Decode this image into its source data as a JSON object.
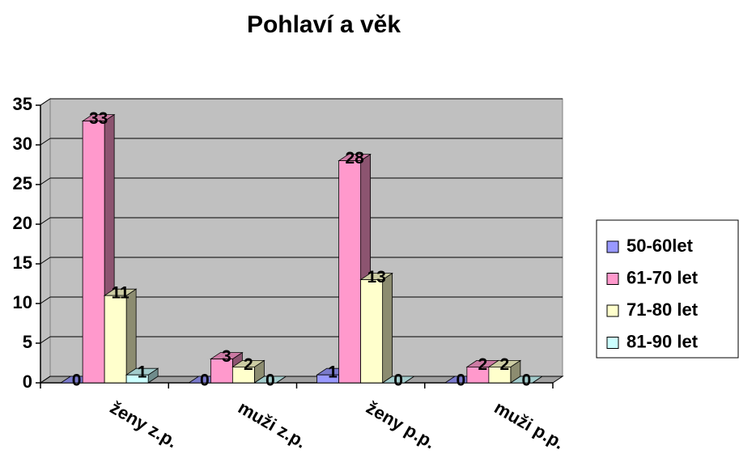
{
  "chart_data": {
    "type": "bar3d",
    "title": "Pohlaví a věk",
    "categories": [
      "ženy z.p.",
      "muži z.p.",
      "ženy p.p.",
      "muži p.p."
    ],
    "series": [
      {
        "name": "50-60let",
        "color": "#9999ff",
        "values": [
          0,
          0,
          1,
          0
        ]
      },
      {
        "name": "61-70 let",
        "color": "#ff99cc",
        "values": [
          33,
          3,
          28,
          2
        ]
      },
      {
        "name": "71-80 let",
        "color": "#ffffcc",
        "values": [
          11,
          2,
          13,
          2
        ]
      },
      {
        "name": "81-90 let",
        "color": "#ccffff",
        "values": [
          1,
          0,
          0,
          0
        ]
      }
    ],
    "ylim": [
      0,
      35
    ],
    "yticks": [
      0,
      5,
      10,
      15,
      20,
      25,
      30,
      35
    ],
    "grid": true,
    "legend": "right"
  }
}
